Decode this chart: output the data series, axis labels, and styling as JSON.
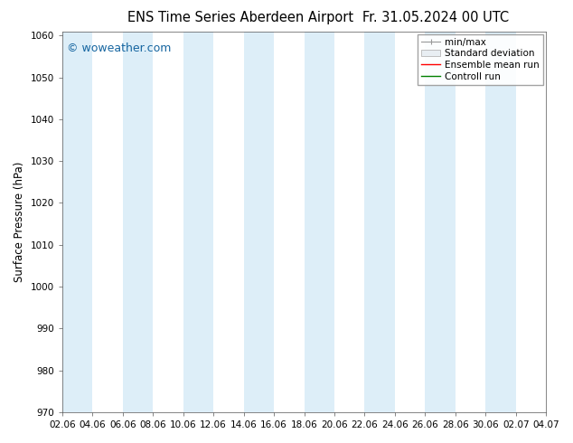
{
  "title_left": "ENS Time Series Aberdeen Airport",
  "title_right": "Fr. 31.05.2024 00 UTC",
  "ylabel": "Surface Pressure (hPa)",
  "ylim": [
    970,
    1061
  ],
  "yticks": [
    970,
    980,
    990,
    1000,
    1010,
    1020,
    1030,
    1040,
    1050,
    1060
  ],
  "xtick_labels": [
    "02.06",
    "04.06",
    "06.06",
    "08.06",
    "10.06",
    "12.06",
    "14.06",
    "16.06",
    "18.06",
    "20.06",
    "22.06",
    "24.06",
    "26.06",
    "28.06",
    "30.06",
    "02.07",
    "04.07"
  ],
  "watermark": "© woweather.com",
  "background_color": "#ffffff",
  "plot_bg_color": "#ffffff",
  "band_color": "#ddeef8",
  "legend_items": [
    "min/max",
    "Standard deviation",
    "Ensemble mean run",
    "Controll run"
  ],
  "legend_line_color": "#999999",
  "legend_patch_face": "#e8eef3",
  "legend_patch_edge": "#aaaaaa",
  "ensemble_color": "#ff0000",
  "control_color": "#008000",
  "title_fontsize": 10.5,
  "ylabel_fontsize": 8.5,
  "tick_fontsize": 7.5,
  "legend_fontsize": 7.5,
  "watermark_color": "#1565a0",
  "watermark_fontsize": 9
}
